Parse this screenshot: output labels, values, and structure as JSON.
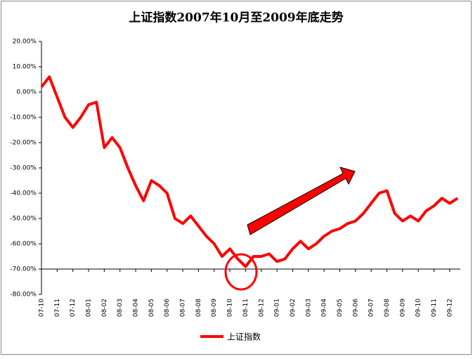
{
  "chart_data": {
    "type": "line",
    "title": "上证指数2007年10月至2009年底走势",
    "categories": [
      "07-10",
      null,
      "07-11",
      null,
      "07-12",
      null,
      "08-01",
      null,
      "08-02",
      null,
      "08-03",
      null,
      "08-04",
      null,
      "08-05",
      null,
      "08-06",
      null,
      "08-07",
      null,
      "08-08",
      null,
      "08-09",
      null,
      "08-10",
      null,
      "08-11",
      null,
      "08-12",
      null,
      "09-01",
      null,
      "09-02",
      null,
      "09-03",
      null,
      "09-04",
      null,
      "09-05",
      null,
      "09-06",
      null,
      "09-07",
      null,
      "09-08",
      null,
      "09-09",
      null,
      "09-10",
      null,
      "09-11",
      null,
      "09-12",
      null
    ],
    "series": [
      {
        "name": "上证指数",
        "color": "#ff0000",
        "values": [
          2,
          6,
          -2,
          -10,
          -14,
          -10,
          -5,
          -4,
          -22,
          -18,
          -22,
          -30,
          -37,
          -43,
          -35,
          -37,
          -40,
          -50,
          -52,
          -49,
          -53,
          -57,
          -60,
          -65,
          -62,
          -66,
          -69,
          -65,
          -65,
          -64,
          -67,
          -66,
          -62,
          -59,
          -62,
          -60,
          -57,
          -55,
          -54,
          -52,
          -51,
          -48,
          -44,
          -40,
          -39,
          -48,
          -51,
          -49,
          -51,
          -47,
          -45,
          -42,
          -44,
          -42
        ]
      }
    ],
    "ylim": [
      -80,
      20
    ],
    "yticks": [
      {
        "value": -80,
        "label": "-80.00%"
      },
      {
        "value": -70,
        "label": "-70.00%"
      },
      {
        "value": -60,
        "label": "-60.00%"
      },
      {
        "value": -50,
        "label": "-50.00%"
      },
      {
        "value": -40,
        "label": "-40.00%"
      },
      {
        "value": -30,
        "label": "-30.00%"
      },
      {
        "value": -20,
        "label": "-20.00%"
      },
      {
        "value": -10,
        "label": "-10.00%"
      },
      {
        "value": 0,
        "label": "0.00%"
      },
      {
        "value": 10,
        "label": "10.00%"
      },
      {
        "value": 20,
        "label": "20.00%"
      }
    ],
    "x_axis_at": -70,
    "legend": "bottom"
  }
}
